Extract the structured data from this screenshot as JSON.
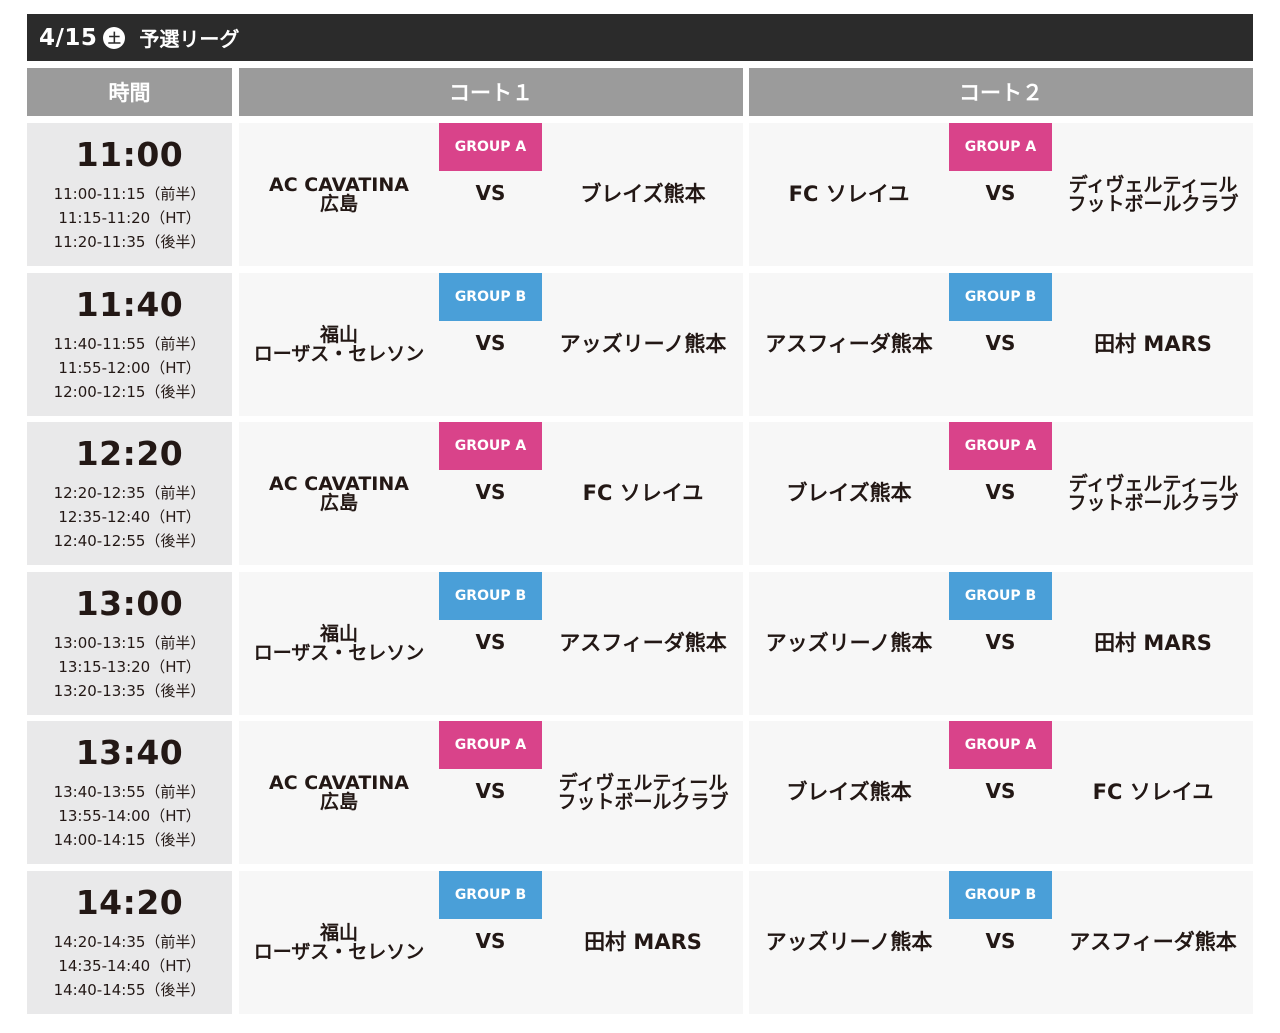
{
  "banner": {
    "date": "4/15",
    "dow": "土",
    "title": "予選リーグ"
  },
  "headers": {
    "time": "時間",
    "court1": "コート１",
    "court2": "コート２"
  },
  "vs_label": "VS",
  "colors": {
    "group_a": "#d9438a",
    "group_b": "#4a9fd8",
    "banner": "#2b2b2b",
    "header": "#9b9b9b"
  },
  "rows": [
    {
      "time": "11:00",
      "slots": [
        "11:00-11:15（前半）",
        "11:15-11:20（HT）",
        "11:20-11:35（後半）"
      ],
      "court1": {
        "group": "GROUP A",
        "home": [
          "AC CAVATINA",
          "広島"
        ],
        "away": [
          "ブレイズ熊本"
        ]
      },
      "court2": {
        "group": "GROUP A",
        "home": [
          "FC ソレイユ"
        ],
        "away": [
          "ディヴェルティール",
          "フットボールクラブ"
        ]
      }
    },
    {
      "time": "11:40",
      "slots": [
        "11:40-11:55（前半）",
        "11:55-12:00（HT）",
        "12:00-12:15（後半）"
      ],
      "court1": {
        "group": "GROUP B",
        "home": [
          "福山",
          "ローザス・セレソン"
        ],
        "away": [
          "アッズリーノ熊本"
        ]
      },
      "court2": {
        "group": "GROUP B",
        "home": [
          "アスフィーダ熊本"
        ],
        "away": [
          "田村 MARS"
        ]
      }
    },
    {
      "time": "12:20",
      "slots": [
        "12:20-12:35（前半）",
        "12:35-12:40（HT）",
        "12:40-12:55（後半）"
      ],
      "court1": {
        "group": "GROUP A",
        "home": [
          "AC CAVATINA",
          "広島"
        ],
        "away": [
          "FC ソレイユ"
        ]
      },
      "court2": {
        "group": "GROUP A",
        "home": [
          "ブレイズ熊本"
        ],
        "away": [
          "ディヴェルティール",
          "フットボールクラブ"
        ]
      }
    },
    {
      "time": "13:00",
      "slots": [
        "13:00-13:15（前半）",
        "13:15-13:20（HT）",
        "13:20-13:35（後半）"
      ],
      "court1": {
        "group": "GROUP B",
        "home": [
          "福山",
          "ローザス・セレソン"
        ],
        "away": [
          "アスフィーダ熊本"
        ]
      },
      "court2": {
        "group": "GROUP B",
        "home": [
          "アッズリーノ熊本"
        ],
        "away": [
          "田村 MARS"
        ]
      }
    },
    {
      "time": "13:40",
      "slots": [
        "13:40-13:55（前半）",
        "13:55-14:00（HT）",
        "14:00-14:15（後半）"
      ],
      "court1": {
        "group": "GROUP A",
        "home": [
          "AC CAVATINA",
          "広島"
        ],
        "away": [
          "ディヴェルティール",
          "フットボールクラブ"
        ]
      },
      "court2": {
        "group": "GROUP A",
        "home": [
          "ブレイズ熊本"
        ],
        "away": [
          "FC ソレイユ"
        ]
      }
    },
    {
      "time": "14:20",
      "slots": [
        "14:20-14:35（前半）",
        "14:35-14:40（HT）",
        "14:40-14:55（後半）"
      ],
      "court1": {
        "group": "GROUP B",
        "home": [
          "福山",
          "ローザス・セレソン"
        ],
        "away": [
          "田村 MARS"
        ]
      },
      "court2": {
        "group": "GROUP B",
        "home": [
          "アッズリーノ熊本"
        ],
        "away": [
          "アスフィーダ熊本"
        ]
      }
    }
  ]
}
